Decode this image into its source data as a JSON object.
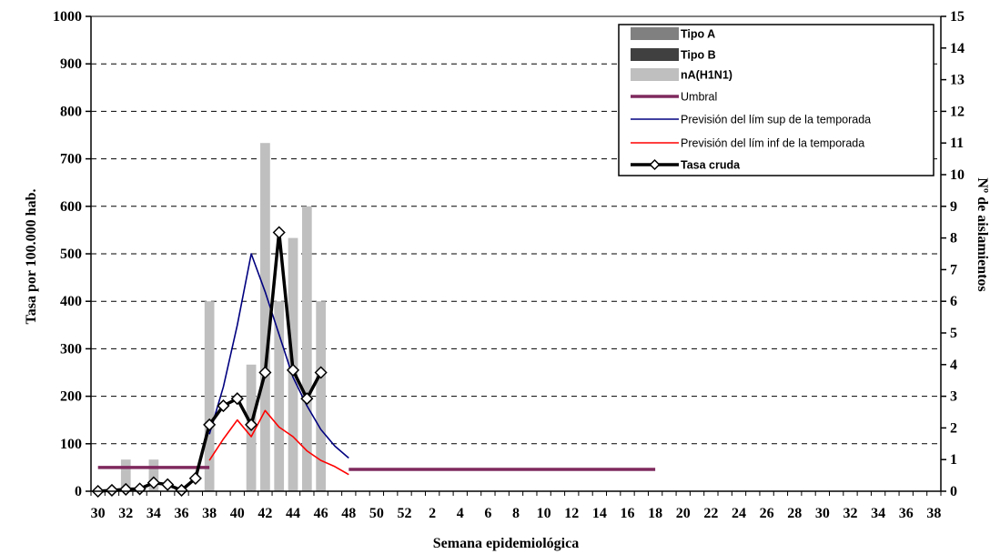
{
  "chart_data": {
    "type": "bar+line",
    "xlabel": "Semana epidemiológica",
    "ylabel_left": "Tasa por 100.000 hab.",
    "ylabel_right": "Nº de aislamientos",
    "ylim_left": [
      0,
      1000
    ],
    "ylim_right": [
      0,
      15
    ],
    "yticks_left": [
      "0",
      "100",
      "200",
      "300",
      "400",
      "500",
      "600",
      "700",
      "800",
      "900",
      "1000"
    ],
    "yticks_right": [
      "0",
      "1",
      "2",
      "3",
      "4",
      "5",
      "6",
      "7",
      "8",
      "9",
      "10",
      "11",
      "12",
      "13",
      "14",
      "15"
    ],
    "x_labels": [
      "30",
      "32",
      "34",
      "36",
      "38",
      "40",
      "42",
      "44",
      "46",
      "48",
      "50",
      "52",
      "2",
      "4",
      "6",
      "8",
      "10",
      "12",
      "14",
      "16",
      "18",
      "20",
      "22",
      "24",
      "26",
      "28",
      "30",
      "32",
      "34",
      "36",
      "38"
    ],
    "x_weeks": [
      "30",
      "31",
      "32",
      "33",
      "34",
      "35",
      "36",
      "37",
      "38",
      "39",
      "40",
      "41",
      "42",
      "43",
      "44",
      "45",
      "46",
      "47",
      "48",
      "49",
      "50",
      "51",
      "52",
      "1",
      "2",
      "3",
      "4",
      "5",
      "6",
      "7",
      "8",
      "9",
      "10",
      "11",
      "12",
      "13",
      "14",
      "15",
      "16",
      "17",
      "18",
      "19",
      "20",
      "21",
      "22",
      "23",
      "24",
      "25",
      "26",
      "27",
      "28",
      "29",
      "30",
      "31",
      "32",
      "33",
      "34",
      "35",
      "36",
      "37",
      "38",
      "39"
    ],
    "grid": "horizontal dashed",
    "legend_position": "top-right",
    "series": [
      {
        "name": "Tipo A",
        "kind": "bar",
        "axis": "right",
        "color": "#808080",
        "values": []
      },
      {
        "name": "Tipo B",
        "kind": "bar",
        "axis": "right",
        "color": "#404040",
        "values": []
      },
      {
        "name": "nA(H1N1)",
        "kind": "bar",
        "axis": "right",
        "color": "#bfbfbf",
        "points": [
          [
            2,
            1
          ],
          [
            4,
            1
          ],
          [
            8,
            6
          ],
          [
            11,
            4
          ],
          [
            12,
            11
          ],
          [
            13,
            6
          ],
          [
            14,
            8
          ],
          [
            15,
            9
          ],
          [
            16,
            6
          ]
        ]
      },
      {
        "name": "Umbral",
        "kind": "line",
        "axis": "left",
        "color": "#7f2a5e",
        "segments": [
          [
            [
              0,
              50
            ],
            [
              8,
              50
            ]
          ],
          [
            [
              18,
              46
            ],
            [
              40,
              46
            ]
          ]
        ]
      },
      {
        "name": "Previsión del lím sup de la temporada",
        "kind": "line",
        "axis": "left",
        "color": "#000080",
        "points": [
          [
            8,
            120
          ],
          [
            9,
            220
          ],
          [
            10,
            350
          ],
          [
            11,
            500
          ],
          [
            12,
            420
          ],
          [
            13,
            330
          ],
          [
            14,
            240
          ],
          [
            15,
            180
          ],
          [
            16,
            130
          ],
          [
            17,
            95
          ],
          [
            18,
            70
          ]
        ]
      },
      {
        "name": "Previsión del lím inf de la temporada",
        "kind": "line",
        "axis": "left",
        "color": "#ff0000",
        "points": [
          [
            8,
            65
          ],
          [
            9,
            110
          ],
          [
            10,
            150
          ],
          [
            11,
            115
          ],
          [
            12,
            170
          ],
          [
            13,
            135
          ],
          [
            14,
            115
          ],
          [
            15,
            85
          ],
          [
            16,
            65
          ],
          [
            17,
            52
          ],
          [
            18,
            35
          ]
        ]
      },
      {
        "name": "Tasa cruda",
        "kind": "line",
        "axis": "left",
        "color": "#000000",
        "marker": "diamond",
        "points": [
          [
            0,
            0
          ],
          [
            1,
            2
          ],
          [
            2,
            4
          ],
          [
            3,
            5
          ],
          [
            4,
            18
          ],
          [
            5,
            14
          ],
          [
            6,
            2
          ],
          [
            7,
            27
          ],
          [
            8,
            140
          ],
          [
            9,
            180
          ],
          [
            10,
            195
          ],
          [
            11,
            140
          ],
          [
            12,
            250
          ],
          [
            13,
            545
          ],
          [
            14,
            255
          ],
          [
            15,
            195
          ],
          [
            16,
            250
          ]
        ]
      }
    ]
  }
}
